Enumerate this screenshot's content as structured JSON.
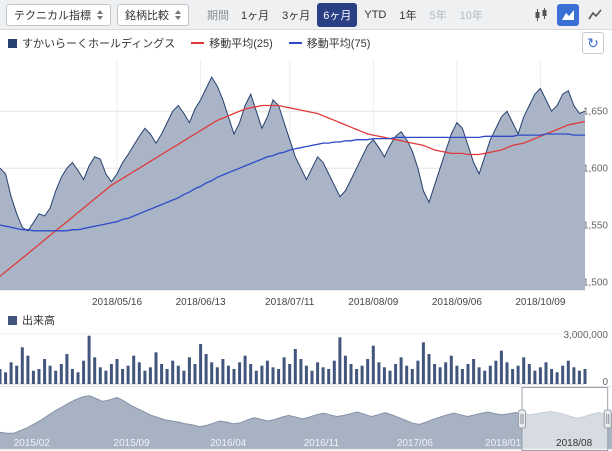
{
  "toolbar": {
    "technical_indicator_button": "テクニカル指標",
    "compare_button": "銘柄比較",
    "period_label": "期間",
    "periods": [
      {
        "label": "1ヶ月",
        "state": "normal"
      },
      {
        "label": "3ヶ月",
        "state": "normal"
      },
      {
        "label": "6ヶ月",
        "state": "selected"
      },
      {
        "label": "YTD",
        "state": "normal"
      },
      {
        "label": "1年",
        "state": "normal"
      },
      {
        "label": "5年",
        "state": "disabled"
      },
      {
        "label": "10年",
        "state": "disabled"
      }
    ],
    "chart_types": [
      {
        "name": "candlestick-chart",
        "active": false
      },
      {
        "name": "area-chart",
        "active": true
      },
      {
        "name": "line-chart",
        "active": false
      }
    ]
  },
  "legend": {
    "series": [
      {
        "label": "すかいらーくホールディングス",
        "marker": "square",
        "color": "#26406f"
      },
      {
        "label": "移動平均(25)",
        "marker": "line",
        "color": "#e0393a"
      },
      {
        "label": "移動平均(75)",
        "marker": "line",
        "color": "#2e49c8"
      }
    ]
  },
  "icons": {
    "refresh": "↻"
  },
  "colors": {
    "accent": "#3a70d6",
    "selected_period_bg": "#2b3f85",
    "area_fill": "#a9b5c6"
  },
  "chart_data": [
    {
      "type": "area",
      "name": "price",
      "ylim": [
        1493,
        1695
      ],
      "y_ticks": [
        {
          "value": 1650,
          "label": "1,650"
        },
        {
          "value": 1600,
          "label": "1,600"
        },
        {
          "value": 1550,
          "label": "1,550"
        },
        {
          "value": 1500,
          "label": "1,500"
        }
      ],
      "x_ticks": [
        {
          "index": 21,
          "label": "2018/05/16"
        },
        {
          "index": 36,
          "label": "2018/06/13"
        },
        {
          "index": 52,
          "label": "2018/07/11"
        },
        {
          "index": 67,
          "label": "2018/08/09"
        },
        {
          "index": 82,
          "label": "2018/09/06"
        },
        {
          "index": 97,
          "label": "2018/10/09"
        }
      ],
      "series": [
        {
          "name": "すかいらーくホールディングス",
          "type": "area",
          "line_color": "#26406f",
          "fill_color": "#a9b5c6",
          "values": [
            1600,
            1595,
            1575,
            1560,
            1548,
            1545,
            1552,
            1560,
            1558,
            1565,
            1580,
            1592,
            1600,
            1605,
            1598,
            1590,
            1602,
            1610,
            1608,
            1595,
            1588,
            1595,
            1605,
            1612,
            1620,
            1628,
            1635,
            1630,
            1622,
            1630,
            1640,
            1650,
            1655,
            1648,
            1640,
            1652,
            1660,
            1670,
            1680,
            1672,
            1660,
            1645,
            1630,
            1640,
            1655,
            1665,
            1650,
            1635,
            1645,
            1660,
            1655,
            1640,
            1625,
            1610,
            1600,
            1590,
            1600,
            1610,
            1605,
            1595,
            1585,
            1575,
            1580,
            1590,
            1600,
            1610,
            1620,
            1625,
            1618,
            1610,
            1620,
            1628,
            1632,
            1625,
            1615,
            1600,
            1580,
            1570,
            1585,
            1600,
            1615,
            1630,
            1640,
            1635,
            1620,
            1605,
            1595,
            1610,
            1625,
            1635,
            1645,
            1650,
            1640,
            1630,
            1645,
            1655,
            1665,
            1670,
            1660,
            1650,
            1655,
            1665,
            1668,
            1655,
            1648,
            1650
          ]
        },
        {
          "name": "移動平均(25)",
          "type": "line",
          "line_color": "#e0393a",
          "values": [
            1505,
            1509,
            1513,
            1517,
            1521,
            1525,
            1529,
            1533,
            1537,
            1541,
            1545,
            1549,
            1553,
            1557,
            1561,
            1565,
            1569,
            1573,
            1577,
            1581,
            1585,
            1588,
            1591,
            1594,
            1597,
            1600,
            1603,
            1606,
            1609,
            1612,
            1615,
            1618,
            1621,
            1624,
            1627,
            1630,
            1633,
            1636,
            1639,
            1642,
            1644,
            1646,
            1648,
            1650,
            1652,
            1653,
            1654,
            1655,
            1655,
            1655,
            1655,
            1654,
            1653,
            1652,
            1651,
            1650,
            1649,
            1648,
            1646,
            1644,
            1642,
            1640,
            1638,
            1636,
            1634,
            1632,
            1630,
            1629,
            1628,
            1627,
            1626,
            1625,
            1624,
            1623,
            1622,
            1621,
            1620,
            1618,
            1616,
            1615,
            1614,
            1613,
            1613,
            1613,
            1612,
            1612,
            1612,
            1613,
            1614,
            1615,
            1616,
            1618,
            1620,
            1621,
            1622,
            1624,
            1626,
            1628,
            1630,
            1632,
            1634,
            1636,
            1638,
            1639,
            1640,
            1641
          ]
        },
        {
          "name": "移動平均(75)",
          "type": "line",
          "line_color": "#2e49c8",
          "values": [
            1550,
            1549,
            1548,
            1547,
            1546,
            1546,
            1545,
            1545,
            1545,
            1545,
            1545,
            1545,
            1545,
            1546,
            1546,
            1547,
            1548,
            1549,
            1550,
            1551,
            1552,
            1553,
            1555,
            1556,
            1558,
            1560,
            1562,
            1564,
            1566,
            1568,
            1570,
            1572,
            1574,
            1577,
            1579,
            1582,
            1584,
            1587,
            1589,
            1592,
            1594,
            1596,
            1598,
            1600,
            1602,
            1604,
            1606,
            1608,
            1610,
            1611,
            1613,
            1614,
            1616,
            1617,
            1618,
            1619,
            1620,
            1621,
            1622,
            1622,
            1623,
            1623,
            1624,
            1624,
            1625,
            1625,
            1625,
            1626,
            1626,
            1626,
            1626,
            1627,
            1627,
            1627,
            1627,
            1627,
            1627,
            1627,
            1627,
            1627,
            1627,
            1627,
            1627,
            1627,
            1627,
            1627,
            1627,
            1628,
            1628,
            1628,
            1628,
            1628,
            1628,
            1629,
            1629,
            1629,
            1629,
            1629,
            1630,
            1630,
            1630,
            1630,
            1630,
            1629,
            1629,
            1629
          ]
        }
      ]
    },
    {
      "type": "bar",
      "name": "出来高",
      "bar_color": "#42567d",
      "ymax": 3000000,
      "y_axis_labels": [
        "3,000,000",
        "0"
      ],
      "values": [
        900000,
        700000,
        1300000,
        1100000,
        2200000,
        1700000,
        800000,
        900000,
        1500000,
        1100000,
        800000,
        1200000,
        1800000,
        900000,
        700000,
        1400000,
        2900000,
        1600000,
        1000000,
        800000,
        1200000,
        1500000,
        900000,
        1100000,
        1700000,
        1300000,
        800000,
        1000000,
        1900000,
        1200000,
        900000,
        1400000,
        1100000,
        800000,
        1600000,
        1200000,
        2400000,
        1800000,
        1300000,
        1000000,
        1500000,
        1100000,
        900000,
        1300000,
        1700000,
        1200000,
        800000,
        1100000,
        1400000,
        1000000,
        900000,
        1600000,
        1200000,
        2100000,
        1500000,
        1100000,
        800000,
        1300000,
        1000000,
        900000,
        1400000,
        2800000,
        1700000,
        1200000,
        900000,
        1100000,
        1500000,
        2300000,
        1300000,
        1000000,
        800000,
        1200000,
        1600000,
        1100000,
        900000,
        1400000,
        2500000,
        1800000,
        1200000,
        1000000,
        1300000,
        1700000,
        1100000,
        900000,
        1200000,
        1500000,
        1000000,
        800000,
        1100000,
        1400000,
        2000000,
        1300000,
        900000,
        1100000,
        1600000,
        1200000,
        800000,
        1000000,
        1300000,
        900000,
        700000,
        1100000,
        1400000,
        1000000,
        800000,
        900000
      ]
    },
    {
      "type": "area",
      "name": "navigator",
      "fill_color": "#a7b2c2",
      "line_color": "#8492a8",
      "ymax": 100,
      "values": [
        30,
        28,
        28,
        33,
        38,
        45,
        52,
        60,
        68,
        75,
        82,
        88,
        93,
        95,
        90,
        85,
        88,
        92,
        86,
        78,
        72,
        66,
        60,
        56,
        52,
        50,
        48,
        45,
        43,
        40,
        42,
        46,
        50,
        48,
        45,
        47,
        52,
        56,
        53,
        50,
        53,
        57,
        60,
        57,
        54,
        57,
        61,
        64,
        61,
        58,
        60,
        63,
        66,
        62,
        58,
        61,
        65,
        61,
        56,
        51,
        46,
        44,
        48,
        53,
        57,
        61,
        64,
        61,
        58,
        61,
        64,
        66,
        63,
        61,
        63,
        65,
        63,
        61,
        63,
        65,
        67,
        65,
        62,
        58,
        55,
        58,
        62,
        65,
        63,
        64
      ],
      "x_labels": [
        {
          "f": 0.052,
          "label": "2015/02"
        },
        {
          "f": 0.215,
          "label": "2015/09"
        },
        {
          "f": 0.373,
          "label": "2016/04"
        },
        {
          "f": 0.525,
          "label": "2016/11"
        },
        {
          "f": 0.678,
          "label": "2017/06"
        },
        {
          "f": 0.822,
          "label": "2018/01"
        },
        {
          "f": 0.938,
          "label": "2018/08"
        }
      ],
      "window": {
        "start": 0.853,
        "end": 0.993
      }
    }
  ]
}
